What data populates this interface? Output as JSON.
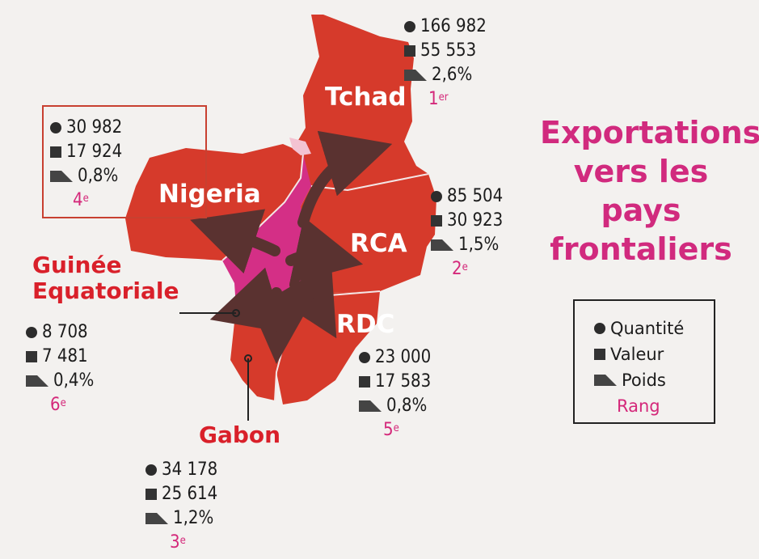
{
  "title": "Exportations vers les pays frontaliers",
  "title_lines": [
    "Exportations",
    "vers les",
    "pays",
    "frontaliers"
  ],
  "legend": {
    "quantity": "Quantité",
    "value": "Valeur",
    "weight": "Poids",
    "rank": "Rang"
  },
  "colors": {
    "country_fill": "#d63a2b",
    "cameroon_fill": "#d42f86",
    "arrow": "#5a3230",
    "accent_pink": "#d12a7e"
  },
  "countries": {
    "tchad": {
      "name": "Tchad",
      "quantity": "166 982",
      "value": "55 553",
      "weight": "2,6%",
      "rank_num": "1",
      "rank_suffix": "er"
    },
    "rca": {
      "name": "RCA",
      "quantity": "85 504",
      "value": "30 923",
      "weight": "1,5%",
      "rank_num": "2",
      "rank_suffix": "e"
    },
    "gabon": {
      "name": "Gabon",
      "quantity": "34 178",
      "value": "25 614",
      "weight": "1,2%",
      "rank_num": "3",
      "rank_suffix": "e"
    },
    "nigeria": {
      "name": "Nigeria",
      "quantity": "30 982",
      "value": "17 924",
      "weight": "0,8%",
      "rank_num": "4",
      "rank_suffix": "e"
    },
    "rdc": {
      "name": "RDC",
      "quantity": "23 000",
      "value": "17 583",
      "weight": "0,8%",
      "rank_num": "5",
      "rank_suffix": "e"
    },
    "guinee": {
      "name_line1": "Guinée",
      "name_line2": "Equatoriale",
      "quantity": "8 708",
      "value": "7 481",
      "weight": "0,4%",
      "rank_num": "6",
      "rank_suffix": "e"
    }
  }
}
